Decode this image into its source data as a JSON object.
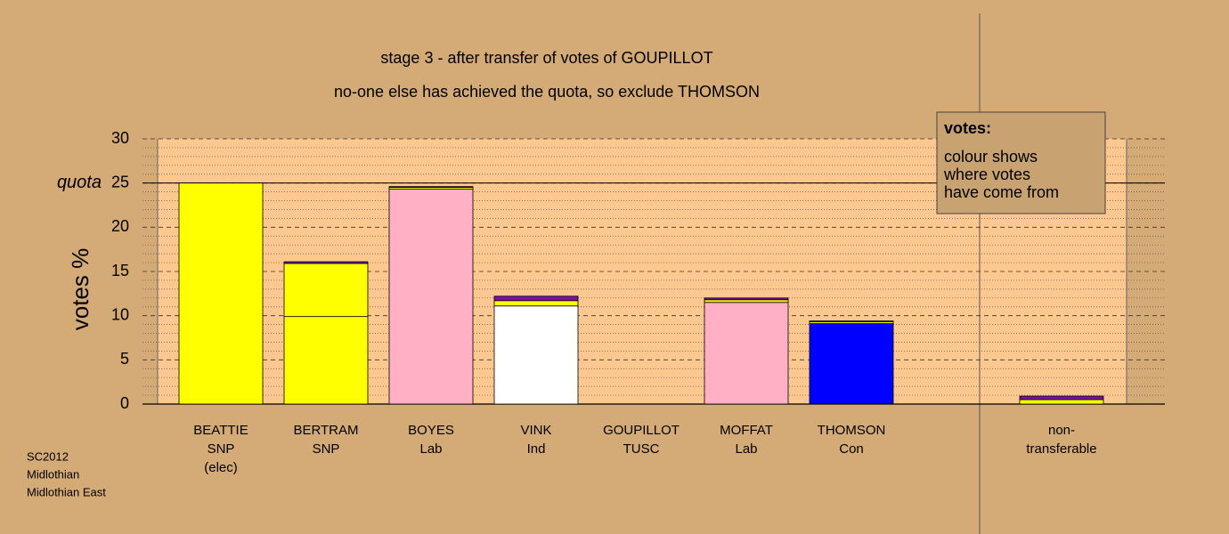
{
  "chart_data": {
    "type": "stacked_bar",
    "title": "stage 3 - after transfer of votes of GOUPILLOT",
    "subtitle": "no-one else has achieved the quota, so exclude THOMSON",
    "y_label": "votes %",
    "categories": [
      [
        "BEATTIE",
        "SNP",
        "(elec)"
      ],
      [
        "BERTRAM",
        "SNP"
      ],
      [
        "BOYES",
        "Lab"
      ],
      [
        "VINK",
        "Ind"
      ],
      [
        "GOUPILLOT",
        "TUSC"
      ],
      [
        "MOFFAT",
        "Lab"
      ],
      [
        "THOMSON",
        "Con"
      ],
      [
        "non-",
        "transferable"
      ]
    ],
    "series": [
      {
        "colors": [
          "#ffff00",
          "#ffff00",
          "#ffb0c4",
          "#ffffff",
          "#7a10a8",
          "#ffb0c4",
          "#0000ff",
          null
        ],
        "values": [
          25,
          9.9,
          24.3,
          11.1,
          0,
          11.5,
          9.1,
          null
        ]
      },
      {
        "color": "#ffff00",
        "values": [
          null,
          6.0,
          0.2,
          0.6,
          null,
          0.3,
          0.2,
          0.5
        ]
      },
      {
        "color": "#7a10a8",
        "values": [
          null,
          0.2,
          0.1,
          0.5,
          null,
          0.2,
          0.1,
          0.4
        ]
      }
    ],
    "ylim": [
      0,
      30
    ],
    "yticks": [
      0,
      5,
      10,
      15,
      20,
      25,
      30
    ],
    "minor_yticks": [
      1,
      2,
      3,
      4,
      6,
      7,
      8,
      9,
      11,
      12,
      13,
      14,
      16,
      17,
      18,
      19,
      21,
      22,
      23,
      24,
      26,
      27,
      28,
      29
    ],
    "quota": {
      "value": 25,
      "label": "quota"
    },
    "legend": {
      "title": "votes:",
      "lines": [
        "colour shows",
        "where votes",
        "have come from"
      ]
    },
    "note": [
      "SC2012",
      "Midlothian",
      "Midlothian East"
    ]
  }
}
